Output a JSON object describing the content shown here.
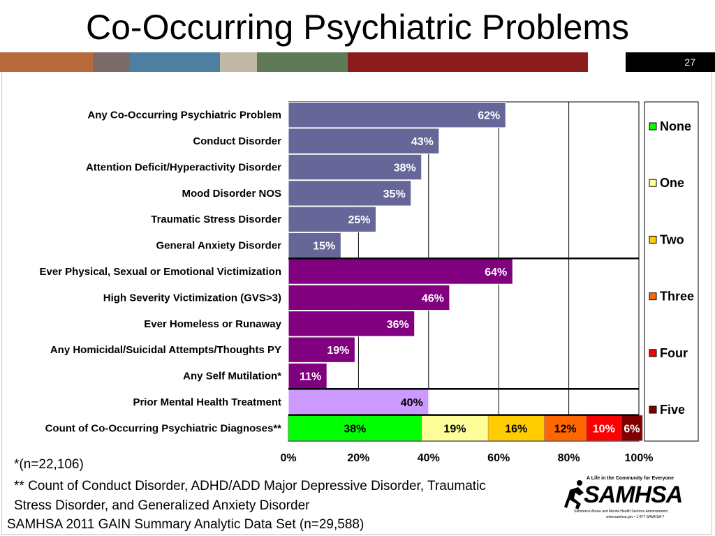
{
  "slide": {
    "title": "Co-Occurring Psychiatric Problems",
    "page_number": "27"
  },
  "color_strip": [
    "#b86a3a",
    "#7b6a6a",
    "#4e7fa0",
    "#c2b8a6",
    "#5f7a56",
    "#8b1c1c"
  ],
  "chart_data": {
    "type": "bar",
    "orientation": "horizontal",
    "xlim": [
      0,
      100
    ],
    "x_ticks": [
      "0%",
      "20%",
      "40%",
      "60%",
      "80%",
      "100%"
    ],
    "grid": true,
    "legend_position": "right",
    "bars": [
      {
        "label": "Any Co-Occurring Psychiatric Problem",
        "value": 62,
        "value_label": "62%",
        "color": "#666699",
        "text_color": "#ffffff"
      },
      {
        "label": "Conduct Disorder",
        "value": 43,
        "value_label": "43%",
        "color": "#666699",
        "text_color": "#ffffff"
      },
      {
        "label": "Attention Deficit/Hyperactivity Disorder",
        "value": 38,
        "value_label": "38%",
        "color": "#666699",
        "text_color": "#ffffff"
      },
      {
        "label": "Mood Disorder NOS",
        "value": 35,
        "value_label": "35%",
        "color": "#666699",
        "text_color": "#ffffff"
      },
      {
        "label": "Traumatic Stress Disorder",
        "value": 25,
        "value_label": "25%",
        "color": "#666699",
        "text_color": "#ffffff"
      },
      {
        "label": "General Anxiety Disorder",
        "value": 15,
        "value_label": "15%",
        "color": "#666699",
        "text_color": "#ffffff"
      },
      {
        "label": "Ever Physical, Sexual or Emotional Victimization",
        "value": 64,
        "value_label": "64%",
        "color": "#800080",
        "text_color": "#ffffff"
      },
      {
        "label": "High Severity Victimization (GVS>3)",
        "value": 46,
        "value_label": "46%",
        "color": "#800080",
        "text_color": "#ffffff"
      },
      {
        "label": "Ever Homeless or Runaway",
        "value": 36,
        "value_label": "36%",
        "color": "#800080",
        "text_color": "#ffffff"
      },
      {
        "label": "Any Homicidal/Suicidal Attempts/Thoughts PY",
        "value": 19,
        "value_label": "19%",
        "color": "#800080",
        "text_color": "#ffffff"
      },
      {
        "label": "Any Self Mutilation*",
        "value": 11,
        "value_label": "11%",
        "color": "#800080",
        "text_color": "#ffffff"
      },
      {
        "label": "Prior Mental Health Treatment",
        "value": 40,
        "value_label": "40%",
        "color": "#cc99ff",
        "text_color": "#000000"
      }
    ],
    "stacked_bar": {
      "label": "Count of Co-Occurring Psychiatric Diagnoses**",
      "segments": [
        {
          "name": "None",
          "value": 38,
          "value_label": "38%",
          "color": "#00ff00",
          "text_color": "#000000"
        },
        {
          "name": "One",
          "value": 19,
          "value_label": "19%",
          "color": "#ffff99",
          "text_color": "#000000"
        },
        {
          "name": "Two",
          "value": 16,
          "value_label": "16%",
          "color": "#ffcc00",
          "text_color": "#000000"
        },
        {
          "name": "Three",
          "value": 12,
          "value_label": "12%",
          "color": "#ff6600",
          "text_color": "#000000"
        },
        {
          "name": "Four",
          "value": 10,
          "value_label": "10%",
          "color": "#ff0000",
          "text_color": "#ffffff"
        },
        {
          "name": "Five",
          "value": 6,
          "value_label": "6%",
          "color": "#800000",
          "text_color": "#ffffff"
        }
      ]
    },
    "legend": [
      "None",
      "One",
      "Two",
      "Three",
      "Four",
      "Five"
    ]
  },
  "footnotes": {
    "n_note": "*(n=22,106)",
    "count_note": "** Count of Conduct Disorder, ADHD/ADD Major Depressive Disorder, Traumatic Stress Disorder, and Generalized Anxiety Disorder"
  },
  "source": "SAMHSA 2011 GAIN Summary Analytic Data Set (n=29,588)",
  "logo": {
    "tagline": "A Life in the Community for Everyone",
    "name": "SAMHSA",
    "subtitle": "Substance Abuse and Mental Health Services Administration",
    "url": "www.samhsa.gov • 1-877-SAMHSA-7"
  }
}
